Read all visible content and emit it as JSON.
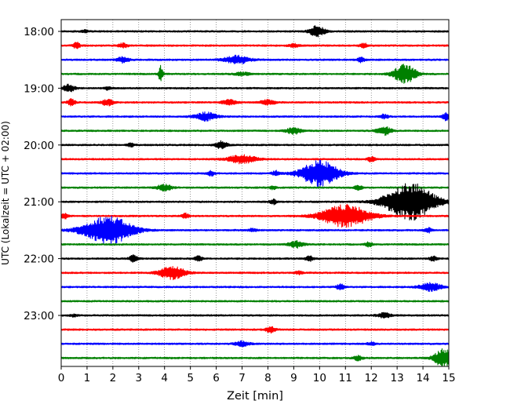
{
  "chart_data": {
    "type": "line",
    "subtype": "helicorder-seismogram",
    "xlabel": "Zeit  [min]",
    "ylabel": "UTC (Lokalzeit = UTC + 02:00)",
    "xlim": [
      0,
      15
    ],
    "x_ticks": [
      "0",
      "1",
      "2",
      "3",
      "4",
      "5",
      "6",
      "7",
      "8",
      "9",
      "10",
      "11",
      "12",
      "13",
      "14",
      "15"
    ],
    "y_tick_labels": [
      "18:00",
      "19:00",
      "20:00",
      "21:00",
      "22:00",
      "23:00"
    ],
    "y_tick_rows": [
      0,
      4,
      8,
      12,
      16,
      20
    ],
    "grid": "vertical-dotted",
    "trace_color_cycle": [
      "#000000",
      "#ff0000",
      "#0000ff",
      "#008000"
    ],
    "row_interval_min": 15,
    "rows": [
      {
        "start": "18:00",
        "bursts": [
          {
            "t": 9.9,
            "a": 7,
            "w": 0.2
          },
          {
            "t": 0.9,
            "a": 1.5,
            "w": 0.1
          }
        ]
      },
      {
        "start": "18:15",
        "bursts": [
          {
            "t": 0.6,
            "a": 4,
            "w": 0.1
          },
          {
            "t": 2.4,
            "a": 3,
            "w": 0.12
          },
          {
            "t": 9.0,
            "a": 2,
            "w": 0.15
          },
          {
            "t": 11.7,
            "a": 3,
            "w": 0.1
          }
        ]
      },
      {
        "start": "18:30",
        "bursts": [
          {
            "t": 2.4,
            "a": 4,
            "w": 0.15
          },
          {
            "t": 6.8,
            "a": 5,
            "w": 0.35
          },
          {
            "t": 11.6,
            "a": 3,
            "w": 0.1
          }
        ]
      },
      {
        "start": "18:45",
        "bursts": [
          {
            "t": 3.85,
            "a": 10,
            "w": 0.06
          },
          {
            "t": 7.0,
            "a": 2,
            "w": 0.2
          },
          {
            "t": 13.3,
            "a": 12,
            "w": 0.3
          }
        ]
      },
      {
        "start": "19:00",
        "bursts": [
          {
            "t": 0.3,
            "a": 5,
            "w": 0.15
          },
          {
            "t": 1.8,
            "a": 2,
            "w": 0.1
          }
        ]
      },
      {
        "start": "19:15",
        "bursts": [
          {
            "t": 0.4,
            "a": 4,
            "w": 0.1
          },
          {
            "t": 1.8,
            "a": 4,
            "w": 0.15
          },
          {
            "t": 6.5,
            "a": 3,
            "w": 0.2
          },
          {
            "t": 8.0,
            "a": 3,
            "w": 0.2
          }
        ]
      },
      {
        "start": "19:30",
        "bursts": [
          {
            "t": 5.6,
            "a": 5,
            "w": 0.3
          },
          {
            "t": 12.5,
            "a": 3,
            "w": 0.1
          },
          {
            "t": 14.9,
            "a": 5,
            "w": 0.1
          }
        ]
      },
      {
        "start": "19:45",
        "bursts": [
          {
            "t": 9.0,
            "a": 4,
            "w": 0.2
          },
          {
            "t": 12.5,
            "a": 5,
            "w": 0.2
          }
        ]
      },
      {
        "start": "20:00",
        "bursts": [
          {
            "t": 6.2,
            "a": 5,
            "w": 0.15
          },
          {
            "t": 2.7,
            "a": 2,
            "w": 0.1
          }
        ]
      },
      {
        "start": "20:15",
        "bursts": [
          {
            "t": 7.0,
            "a": 5,
            "w": 0.4
          },
          {
            "t": 12.0,
            "a": 3,
            "w": 0.1
          }
        ]
      },
      {
        "start": "20:30",
        "bursts": [
          {
            "t": 10.0,
            "a": 16,
            "w": 0.5
          },
          {
            "t": 5.8,
            "a": 3,
            "w": 0.1
          },
          {
            "t": 8.3,
            "a": 3,
            "w": 0.1
          }
        ]
      },
      {
        "start": "20:45",
        "bursts": [
          {
            "t": 4.0,
            "a": 4,
            "w": 0.2
          },
          {
            "t": 8.2,
            "a": 2,
            "w": 0.1
          },
          {
            "t": 11.5,
            "a": 3,
            "w": 0.1
          }
        ]
      },
      {
        "start": "21:00",
        "bursts": [
          {
            "t": 13.5,
            "a": 24,
            "w": 0.65
          },
          {
            "t": 8.2,
            "a": 3,
            "w": 0.1
          }
        ]
      },
      {
        "start": "21:15",
        "bursts": [
          {
            "t": 11.0,
            "a": 14,
            "w": 0.65
          },
          {
            "t": 0.1,
            "a": 4,
            "w": 0.1
          },
          {
            "t": 4.8,
            "a": 3,
            "w": 0.1
          }
        ]
      },
      {
        "start": "21:30",
        "bursts": [
          {
            "t": 1.8,
            "a": 18,
            "w": 0.65
          },
          {
            "t": 7.4,
            "a": 2,
            "w": 0.1
          },
          {
            "t": 14.2,
            "a": 3,
            "w": 0.1
          }
        ]
      },
      {
        "start": "21:45",
        "bursts": [
          {
            "t": 9.1,
            "a": 4,
            "w": 0.2
          },
          {
            "t": 11.9,
            "a": 3,
            "w": 0.1
          }
        ]
      },
      {
        "start": "22:00",
        "bursts": [
          {
            "t": 2.8,
            "a": 4,
            "w": 0.12
          },
          {
            "t": 5.3,
            "a": 3,
            "w": 0.12
          },
          {
            "t": 9.6,
            "a": 4,
            "w": 0.1
          },
          {
            "t": 14.4,
            "a": 3,
            "w": 0.1
          }
        ]
      },
      {
        "start": "22:15",
        "bursts": [
          {
            "t": 4.3,
            "a": 8,
            "w": 0.35
          },
          {
            "t": 9.2,
            "a": 2,
            "w": 0.1
          }
        ]
      },
      {
        "start": "22:30",
        "bursts": [
          {
            "t": 10.8,
            "a": 4,
            "w": 0.1
          },
          {
            "t": 14.3,
            "a": 5,
            "w": 0.3
          }
        ]
      },
      {
        "start": "22:45",
        "bursts": []
      },
      {
        "start": "23:00",
        "bursts": [
          {
            "t": 12.5,
            "a": 3,
            "w": 0.2
          },
          {
            "t": 0.5,
            "a": 1.5,
            "w": 0.1
          }
        ]
      },
      {
        "start": "23:15",
        "bursts": [
          {
            "t": 8.1,
            "a": 4,
            "w": 0.12
          }
        ]
      },
      {
        "start": "23:30",
        "bursts": [
          {
            "t": 7.0,
            "a": 3,
            "w": 0.2
          },
          {
            "t": 12.0,
            "a": 2,
            "w": 0.1
          }
        ]
      },
      {
        "start": "23:45",
        "bursts": [
          {
            "t": 11.5,
            "a": 3,
            "w": 0.12
          },
          {
            "t": 14.8,
            "a": 12,
            "w": 0.25
          }
        ]
      }
    ]
  }
}
